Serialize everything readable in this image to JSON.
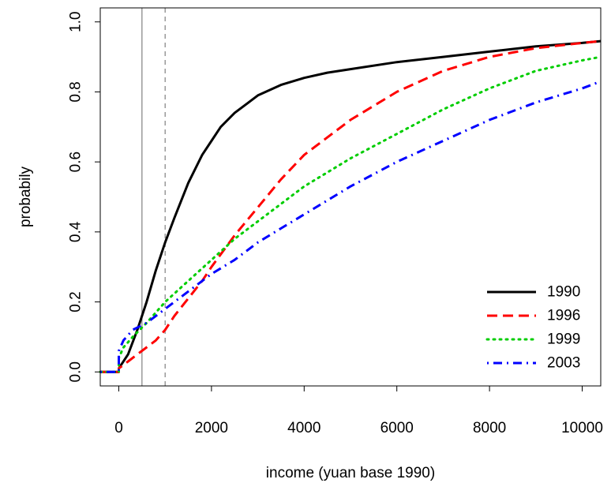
{
  "chart_data": {
    "type": "line",
    "title": "",
    "xlabel": "income (yuan base 1990)",
    "ylabel": "probabily",
    "xlim": [
      -400,
      10400
    ],
    "ylim": [
      -0.04,
      1.04
    ],
    "xticks": [
      0,
      2000,
      4000,
      6000,
      8000,
      10000
    ],
    "xtick_labels": [
      "0",
      "2000",
      "4000",
      "6000",
      "8000",
      "10000"
    ],
    "yticks": [
      0.0,
      0.2,
      0.4,
      0.6,
      0.8,
      1.0
    ],
    "ytick_labels": [
      "0.0",
      "0.2",
      "0.4",
      "0.6",
      "0.8",
      "1.0"
    ],
    "grid": false,
    "legend_position": "bottom-right",
    "reference_lines": [
      {
        "x": 500,
        "style": "solid",
        "color": "#808080"
      },
      {
        "x": 1000,
        "style": "dashed",
        "color": "#808080"
      }
    ],
    "series": [
      {
        "name": "1990",
        "color": "#000000",
        "dash": "solid",
        "x": [
          -400,
          0,
          0,
          200,
          400,
          600,
          800,
          1000,
          1200,
          1500,
          1800,
          2000,
          2200,
          2500,
          2800,
          3000,
          3500,
          4000,
          4500,
          5000,
          6000,
          7000,
          8000,
          9000,
          10000,
          10400
        ],
        "y": [
          0,
          0,
          0.01,
          0.05,
          0.12,
          0.2,
          0.29,
          0.37,
          0.44,
          0.54,
          0.62,
          0.66,
          0.7,
          0.74,
          0.77,
          0.79,
          0.82,
          0.84,
          0.855,
          0.865,
          0.885,
          0.9,
          0.915,
          0.93,
          0.94,
          0.945
        ]
      },
      {
        "name": "1996",
        "color": "#ff0000",
        "dash": "dashed",
        "x": [
          -400,
          0,
          0,
          200,
          500,
          800,
          1000,
          1200,
          1500,
          1800,
          2000,
          2500,
          3000,
          3500,
          4000,
          5000,
          6000,
          7000,
          8000,
          9000,
          10000,
          10400
        ],
        "y": [
          0,
          0,
          0.01,
          0.03,
          0.06,
          0.09,
          0.12,
          0.16,
          0.21,
          0.26,
          0.3,
          0.39,
          0.47,
          0.55,
          0.62,
          0.72,
          0.8,
          0.86,
          0.9,
          0.925,
          0.94,
          0.945
        ]
      },
      {
        "name": "1999",
        "color": "#00cd00",
        "dash": "dotted",
        "x": [
          -400,
          0,
          0,
          100,
          300,
          600,
          1000,
          1500,
          2000,
          2500,
          3000,
          3500,
          4000,
          5000,
          6000,
          7000,
          8000,
          9000,
          10000,
          10400
        ],
        "y": [
          0,
          0,
          0.04,
          0.07,
          0.1,
          0.14,
          0.2,
          0.26,
          0.32,
          0.38,
          0.43,
          0.48,
          0.53,
          0.61,
          0.68,
          0.75,
          0.81,
          0.86,
          0.89,
          0.9
        ]
      },
      {
        "name": "2003",
        "color": "#0000ff",
        "dash": "dashdot",
        "x": [
          -400,
          0,
          0,
          100,
          300,
          600,
          1000,
          1500,
          2000,
          2500,
          3000,
          3500,
          4000,
          5000,
          6000,
          7000,
          8000,
          9000,
          10000,
          10400
        ],
        "y": [
          0,
          0,
          0.06,
          0.09,
          0.12,
          0.14,
          0.18,
          0.23,
          0.28,
          0.32,
          0.37,
          0.41,
          0.45,
          0.53,
          0.6,
          0.66,
          0.72,
          0.77,
          0.81,
          0.83
        ]
      }
    ]
  }
}
